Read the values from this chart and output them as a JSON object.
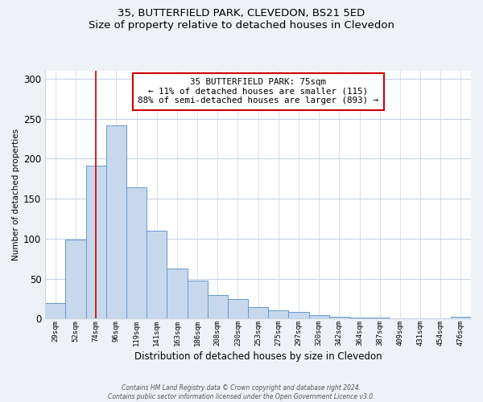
{
  "title": "35, BUTTERFIELD PARK, CLEVEDON, BS21 5ED",
  "subtitle": "Size of property relative to detached houses in Clevedon",
  "xlabel": "Distribution of detached houses by size in Clevedon",
  "ylabel": "Number of detached properties",
  "bar_labels": [
    "29sqm",
    "52sqm",
    "74sqm",
    "96sqm",
    "119sqm",
    "141sqm",
    "163sqm",
    "186sqm",
    "208sqm",
    "230sqm",
    "253sqm",
    "275sqm",
    "297sqm",
    "320sqm",
    "342sqm",
    "364sqm",
    "387sqm",
    "409sqm",
    "431sqm",
    "454sqm",
    "476sqm"
  ],
  "bar_values": [
    20,
    99,
    191,
    242,
    164,
    110,
    63,
    48,
    30,
    25,
    14,
    10,
    8,
    4,
    2,
    1,
    1,
    0,
    0,
    0,
    2
  ],
  "bar_color": "#c8d8ec",
  "bar_edge_color": "#6699cc",
  "ylim": [
    0,
    310
  ],
  "yticks": [
    0,
    50,
    100,
    150,
    200,
    250,
    300
  ],
  "vline_x_index": 2,
  "vline_color": "#cc0000",
  "annotation_title": "35 BUTTERFIELD PARK: 75sqm",
  "annotation_line1": "← 11% of detached houses are smaller (115)",
  "annotation_line2": "88% of semi-detached houses are larger (893) →",
  "annotation_box_color": "#ffffff",
  "annotation_box_edge": "#cc0000",
  "footer1": "Contains HM Land Registry data © Crown copyright and database right 2024.",
  "footer2": "Contains public sector information licensed under the Open Government Licence v3.0.",
  "background_color": "#eef2f7",
  "plot_background": "#ffffff",
  "grid_color": "#c8d4e4"
}
